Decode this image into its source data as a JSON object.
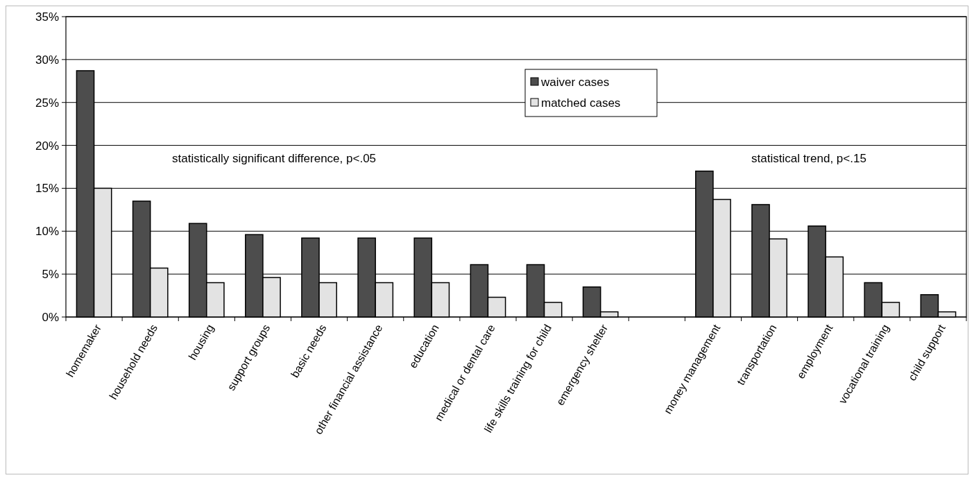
{
  "chart_data": {
    "type": "bar",
    "categories": [
      "homemaker",
      "household needs",
      "housing",
      "support groups",
      "basic needs",
      "other financial assistance",
      "education",
      "medical or dental care",
      "life skills training for child",
      "emergency shelter",
      null,
      "money management",
      "transportation",
      "employment",
      "vocational training",
      "child support"
    ],
    "series": [
      {
        "name": "waiver cases",
        "color": "#4d4d4d",
        "values": [
          28.7,
          13.5,
          10.9,
          9.6,
          9.2,
          9.2,
          9.2,
          6.1,
          6.1,
          3.5,
          null,
          17.0,
          13.1,
          10.6,
          4.0,
          2.6
        ]
      },
      {
        "name": "matched cases",
        "color": "#e3e3e3",
        "values": [
          15.0,
          5.7,
          4.0,
          4.6,
          4.0,
          4.0,
          4.0,
          2.3,
          1.7,
          0.6,
          null,
          13.7,
          9.1,
          7.0,
          1.7,
          0.6
        ]
      }
    ],
    "ylim": [
      0,
      35
    ],
    "yticks": [
      {
        "value": 0,
        "label": "0%"
      },
      {
        "value": 5,
        "label": "5%"
      },
      {
        "value": 10,
        "label": "10%"
      },
      {
        "value": 15,
        "label": "15%"
      },
      {
        "value": 20,
        "label": "20%"
      },
      {
        "value": 25,
        "label": "25%"
      },
      {
        "value": 30,
        "label": "30%"
      },
      {
        "value": 35,
        "label": "35%"
      }
    ],
    "grid": "y",
    "legend": "top",
    "annotations": [
      "statistically significant difference, p<.05",
      "statistical trend, p<.15"
    ]
  }
}
